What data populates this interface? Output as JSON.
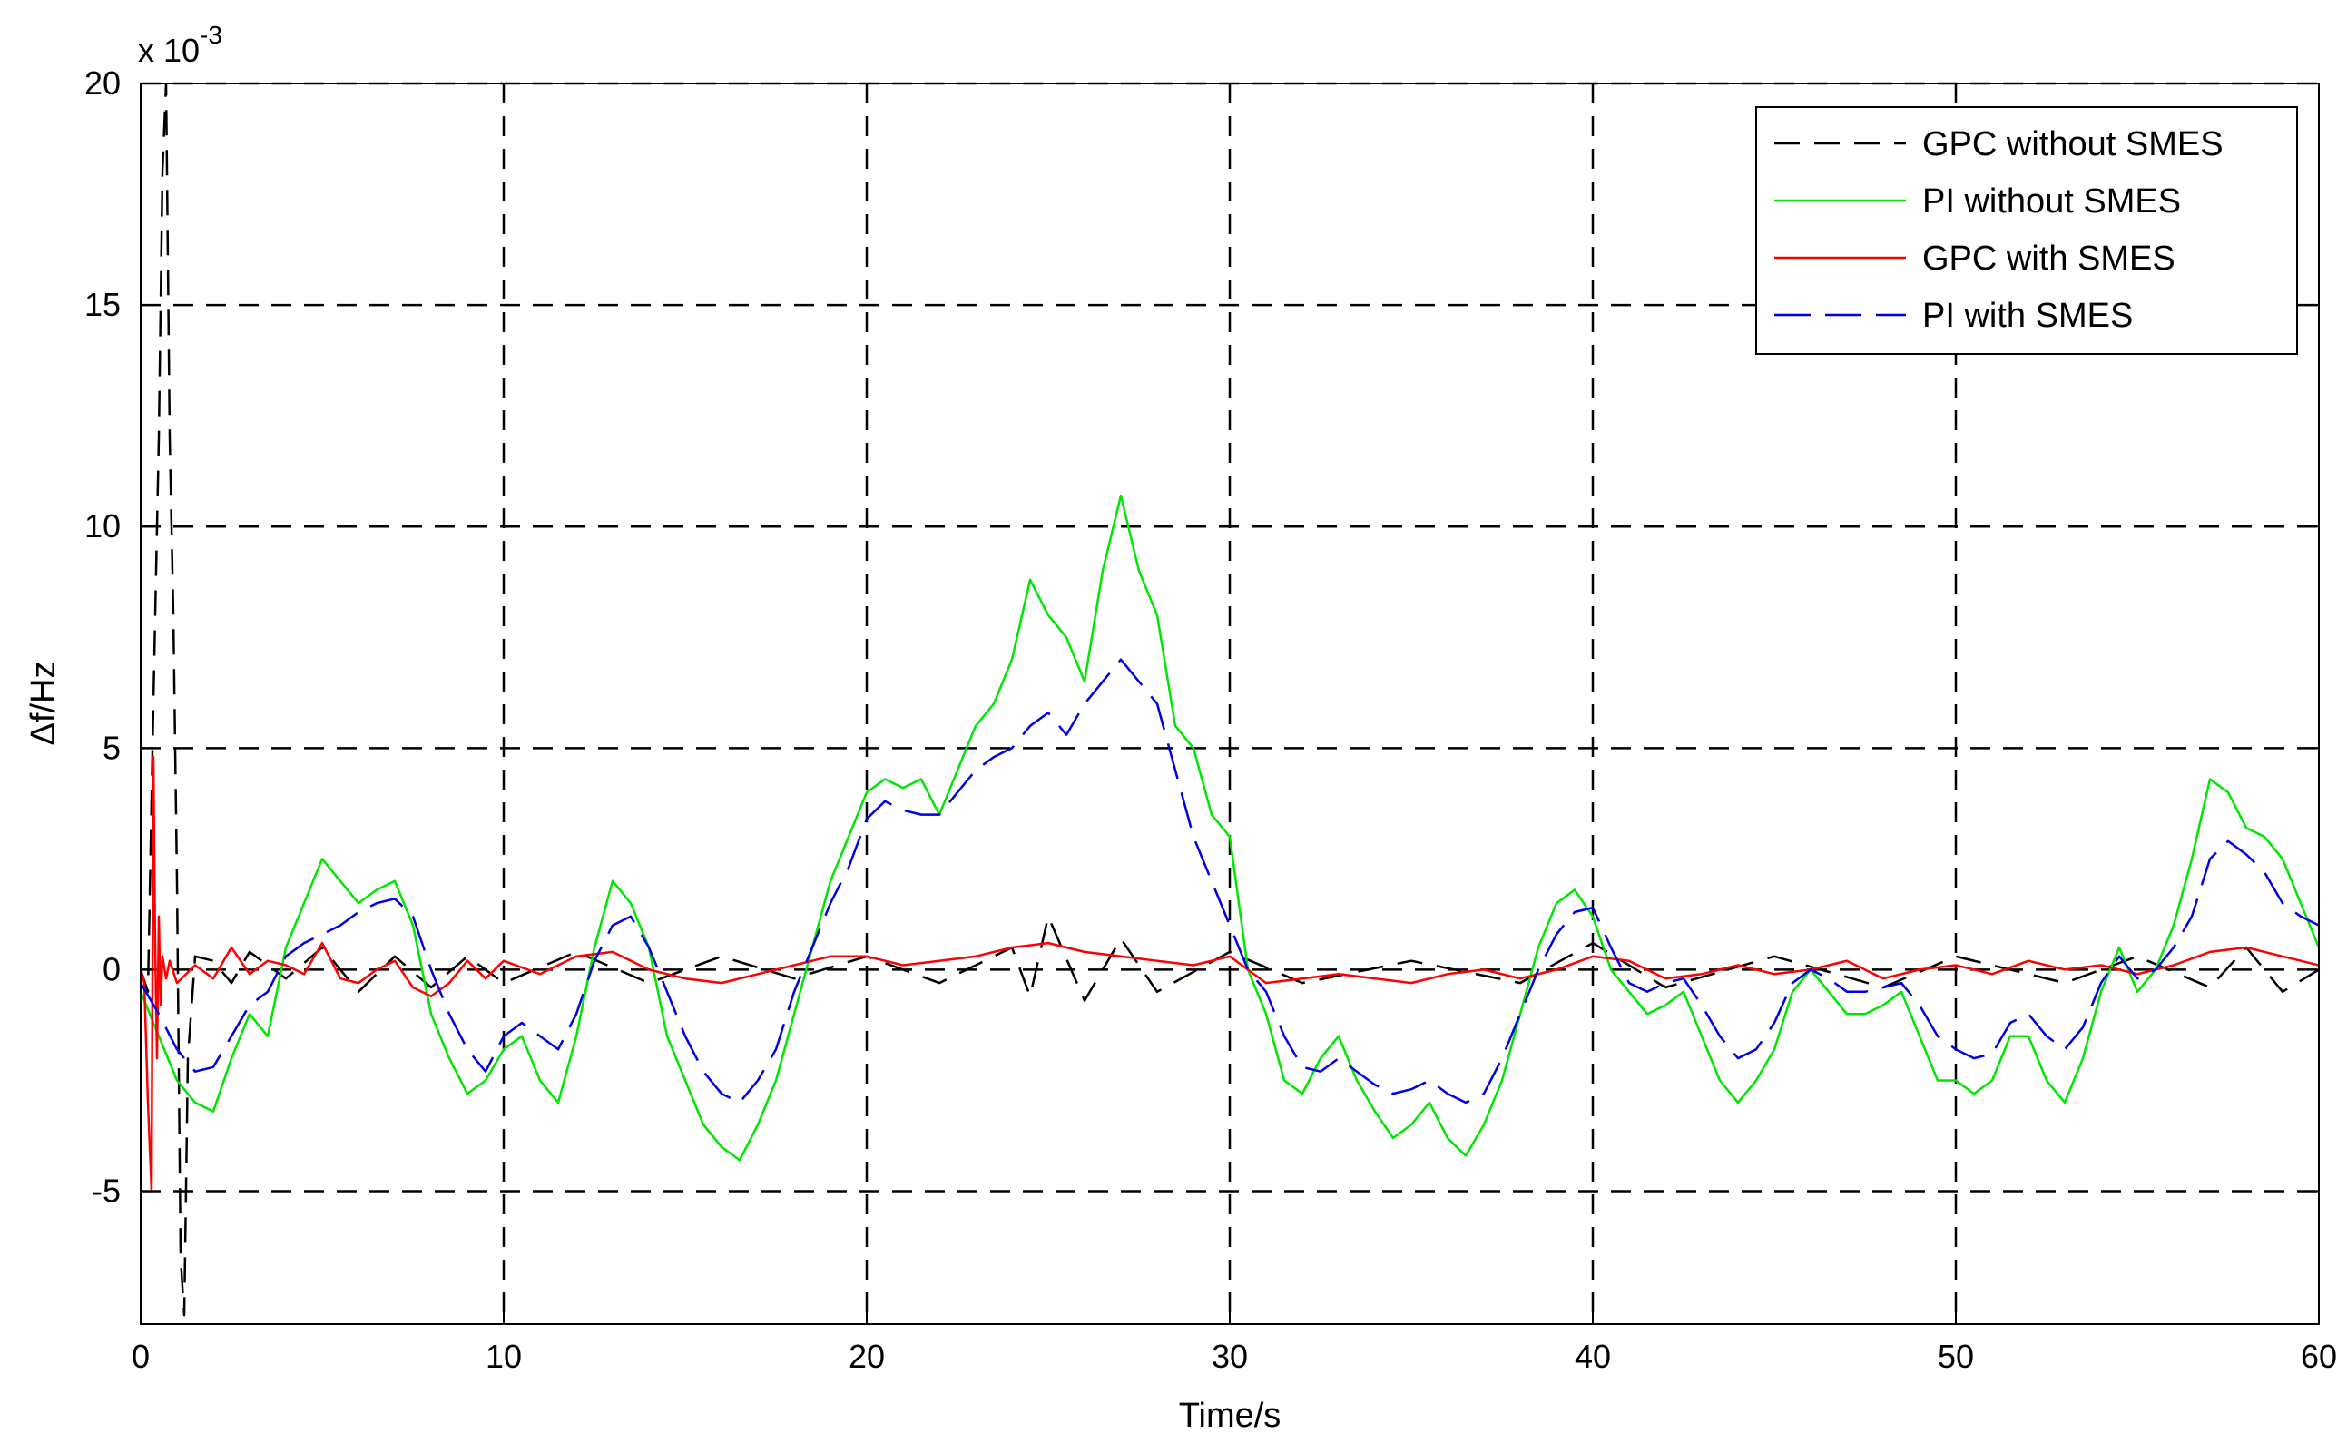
{
  "chart_data": {
    "type": "line",
    "xlabel": "Time/s",
    "ylabel": "Δf/Hz",
    "y_multiplier": {
      "base": "x 10",
      "exponent": "-3"
    },
    "xlim": [
      0,
      60
    ],
    "ylim": [
      -8,
      20
    ],
    "xticks": [
      0,
      10,
      20,
      30,
      40,
      50,
      60
    ],
    "xtick_labels": [
      "0",
      "10",
      "20",
      "30",
      "40",
      "50",
      "60"
    ],
    "yticks": [
      -5,
      0,
      5,
      10,
      15,
      20
    ],
    "ytick_labels": [
      "-5",
      "0",
      "5",
      "10",
      "15",
      "20"
    ],
    "grid": true,
    "legend_position": "top-right",
    "series": [
      {
        "name": "GPC without SMES",
        "color": "#000000",
        "style": "dashed",
        "x": [
          0,
          0.2,
          0.35,
          0.5,
          0.6,
          0.7,
          0.8,
          0.9,
          1.0,
          1.1,
          1.2,
          1.3,
          1.5,
          2,
          2.5,
          3,
          4,
          5,
          6,
          7,
          8,
          9,
          10,
          12,
          14,
          16,
          18,
          20,
          22,
          24,
          24.5,
          25,
          26,
          27,
          28,
          30,
          32,
          35,
          38,
          40,
          42,
          45,
          48,
          50,
          53,
          55,
          57,
          58,
          59,
          60
        ],
        "y": [
          0,
          -0.5,
          6,
          12,
          18,
          20,
          12,
          8,
          2,
          -6.5,
          -7.8,
          -2,
          0.3,
          0.2,
          -0.3,
          0.4,
          -0.2,
          0.5,
          -0.5,
          0.3,
          -0.4,
          0.3,
          -0.3,
          0.4,
          -0.3,
          0.3,
          -0.2,
          0.3,
          -0.3,
          0.5,
          -0.6,
          1.2,
          -0.7,
          0.7,
          -0.5,
          0.4,
          -0.3,
          0.2,
          -0.3,
          0.6,
          -0.4,
          0.3,
          -0.4,
          0.3,
          -0.3,
          0.3,
          -0.4,
          0.5,
          -0.5,
          0
        ]
      },
      {
        "name": "PI without SMES",
        "color": "#00e600",
        "style": "solid",
        "x": [
          0,
          0.5,
          1,
          1.5,
          2,
          2.5,
          3,
          3.5,
          4,
          4.5,
          5,
          5.5,
          6,
          6.5,
          7,
          7.5,
          8,
          8.5,
          9,
          9.5,
          10,
          10.5,
          11,
          11.5,
          12,
          12.5,
          13,
          13.5,
          14,
          14.5,
          15,
          15.5,
          16,
          16.5,
          17,
          17.5,
          18,
          18.5,
          19,
          19.5,
          20,
          20.5,
          21,
          21.5,
          22,
          22.5,
          23,
          23.5,
          24,
          24.5,
          25,
          25.5,
          26,
          26.5,
          27,
          27.5,
          28,
          28.5,
          29,
          29.5,
          30,
          30.5,
          31,
          31.5,
          32,
          32.5,
          33,
          33.5,
          34,
          34.5,
          35,
          35.5,
          36,
          36.5,
          37,
          37.5,
          38,
          38.5,
          39,
          39.5,
          40,
          40.5,
          41,
          41.5,
          42,
          42.5,
          43,
          43.5,
          44,
          44.5,
          45,
          45.5,
          46,
          46.5,
          47,
          47.5,
          48,
          48.5,
          49,
          49.5,
          50,
          50.5,
          51,
          51.5,
          52,
          52.5,
          53,
          53.5,
          54,
          54.5,
          55,
          55.5,
          56,
          56.5,
          57,
          57.5,
          58,
          58.5,
          59,
          59.5,
          60
        ],
        "y": [
          -0.5,
          -1.5,
          -2.5,
          -3,
          -3.2,
          -2,
          -1,
          -1.5,
          0.5,
          1.5,
          2.5,
          2,
          1.5,
          1.8,
          2,
          1,
          -1,
          -2,
          -2.8,
          -2.5,
          -1.8,
          -1.5,
          -2.5,
          -3,
          -1.5,
          0.5,
          2,
          1.5,
          0.5,
          -1.5,
          -2.5,
          -3.5,
          -4,
          -4.3,
          -3.5,
          -2.5,
          -1,
          0.5,
          2,
          3,
          4,
          4.3,
          4.1,
          4.3,
          3.5,
          4.5,
          5.5,
          6,
          7,
          8.8,
          8,
          7.5,
          6.5,
          9,
          10.7,
          9,
          8,
          5.5,
          5,
          3.5,
          3,
          0,
          -1,
          -2.5,
          -2.8,
          -2,
          -1.5,
          -2.5,
          -3.2,
          -3.8,
          -3.5,
          -3,
          -3.8,
          -4.2,
          -3.5,
          -2.5,
          -1,
          0.5,
          1.5,
          1.8,
          1.2,
          0,
          -0.5,
          -1,
          -0.8,
          -0.5,
          -1.5,
          -2.5,
          -3,
          -2.5,
          -1.8,
          -0.5,
          0,
          -0.5,
          -1,
          -1,
          -0.8,
          -0.5,
          -1.5,
          -2.5,
          -2.5,
          -2.8,
          -2.5,
          -1.5,
          -1.5,
          -2.5,
          -3,
          -2,
          -0.5,
          0.5,
          -0.5,
          0,
          1,
          2.5,
          4.3,
          4,
          3.2,
          3,
          2.5,
          1.5,
          0.5
        ]
      },
      {
        "name": "GPC with SMES",
        "color": "#ff0000",
        "style": "solid",
        "x": [
          0,
          0.1,
          0.2,
          0.3,
          0.35,
          0.4,
          0.45,
          0.5,
          0.55,
          0.6,
          0.7,
          0.8,
          1,
          1.5,
          2,
          2.5,
          3,
          3.5,
          4,
          4.5,
          5,
          5.5,
          6,
          6.5,
          7,
          7.5,
          8,
          8.5,
          9,
          9.5,
          10,
          11,
          12,
          13,
          14,
          15,
          16,
          17,
          18,
          19,
          20,
          21,
          22,
          23,
          24,
          25,
          26,
          27,
          28,
          29,
          30,
          31,
          32,
          33,
          34,
          35,
          36,
          37,
          38,
          39,
          40,
          41,
          42,
          43,
          44,
          45,
          46,
          47,
          48,
          49,
          50,
          51,
          52,
          53,
          54,
          55,
          56,
          57,
          58,
          59,
          60
        ],
        "y": [
          0,
          -0.3,
          -3,
          -5,
          4.8,
          0.5,
          -2,
          1.2,
          -0.8,
          0.3,
          -0.2,
          0.2,
          -0.3,
          0.1,
          -0.2,
          0.5,
          -0.1,
          0.2,
          0.1,
          -0.1,
          0.6,
          -0.2,
          -0.3,
          0,
          0.2,
          -0.4,
          -0.6,
          -0.3,
          0.2,
          -0.2,
          0.2,
          -0.1,
          0.3,
          0.4,
          0,
          -0.2,
          -0.3,
          -0.1,
          0.1,
          0.3,
          0.3,
          0.1,
          0.2,
          0.3,
          0.5,
          0.6,
          0.4,
          0.3,
          0.2,
          0.1,
          0.3,
          -0.3,
          -0.2,
          -0.1,
          -0.2,
          -0.3,
          -0.1,
          0,
          -0.2,
          0,
          0.3,
          0.2,
          -0.2,
          -0.1,
          0.1,
          -0.1,
          0,
          0.2,
          -0.2,
          0,
          0.1,
          -0.1,
          0.2,
          0,
          0.1,
          -0.1,
          0.1,
          0.4,
          0.5,
          0.3,
          0.1
        ]
      },
      {
        "name": "PI with SMES",
        "color": "#0000e6",
        "style": "dashed",
        "x": [
          0,
          0.5,
          1,
          1.5,
          2,
          2.5,
          3,
          3.5,
          4,
          4.5,
          5,
          5.5,
          6,
          6.5,
          7,
          7.5,
          8,
          8.5,
          9,
          9.5,
          10,
          10.5,
          11,
          11.5,
          12,
          12.5,
          13,
          13.5,
          14,
          14.5,
          15,
          15.5,
          16,
          16.5,
          17,
          17.5,
          18,
          18.5,
          19,
          19.5,
          20,
          20.5,
          21,
          21.5,
          22,
          22.5,
          23,
          23.5,
          24,
          24.5,
          25,
          25.5,
          26,
          26.5,
          27,
          27.5,
          28,
          28.5,
          29,
          29.5,
          30,
          30.5,
          31,
          31.5,
          32,
          32.5,
          33,
          33.5,
          34,
          34.5,
          35,
          35.5,
          36,
          36.5,
          37,
          37.5,
          38,
          38.5,
          39,
          39.5,
          40,
          40.5,
          41,
          41.5,
          42,
          42.5,
          43,
          43.5,
          44,
          44.5,
          45,
          45.5,
          46,
          46.5,
          47,
          47.5,
          48,
          48.5,
          49,
          49.5,
          50,
          50.5,
          51,
          51.5,
          52,
          52.5,
          53,
          53.5,
          54,
          54.5,
          55,
          55.5,
          56,
          56.5,
          57,
          57.5,
          58,
          58.5,
          59,
          59.5,
          60
        ],
        "y": [
          -0.3,
          -1,
          -1.8,
          -2.3,
          -2.2,
          -1.5,
          -0.8,
          -0.5,
          0.3,
          0.6,
          0.8,
          1,
          1.3,
          1.5,
          1.6,
          1.2,
          0,
          -1,
          -1.8,
          -2.3,
          -1.5,
          -1.2,
          -1.5,
          -1.8,
          -1,
          0.2,
          1,
          1.2,
          0.5,
          -0.5,
          -1.5,
          -2.3,
          -2.8,
          -3,
          -2.5,
          -1.8,
          -0.5,
          0.5,
          1.5,
          2.3,
          3.4,
          3.8,
          3.6,
          3.5,
          3.5,
          4,
          4.5,
          4.8,
          5,
          5.5,
          5.8,
          5.3,
          6,
          6.5,
          7,
          6.5,
          6,
          4.5,
          3,
          2,
          1,
          0,
          -0.5,
          -1.5,
          -2.2,
          -2.3,
          -2,
          -2.3,
          -2.6,
          -2.8,
          -2.7,
          -2.5,
          -2.8,
          -3,
          -2.8,
          -2,
          -1,
          0,
          0.8,
          1.3,
          1.4,
          0.5,
          -0.3,
          -0.5,
          -0.3,
          -0.2,
          -0.8,
          -1.5,
          -2,
          -1.8,
          -1.2,
          -0.3,
          0,
          -0.2,
          -0.5,
          -0.5,
          -0.4,
          -0.3,
          -0.8,
          -1.5,
          -1.8,
          -2,
          -1.9,
          -1.2,
          -1,
          -1.5,
          -1.8,
          -1.3,
          -0.3,
          0.3,
          -0.2,
          0,
          0.5,
          1.2,
          2.5,
          2.9,
          2.6,
          2.2,
          1.5,
          1.2,
          1
        ]
      }
    ]
  }
}
